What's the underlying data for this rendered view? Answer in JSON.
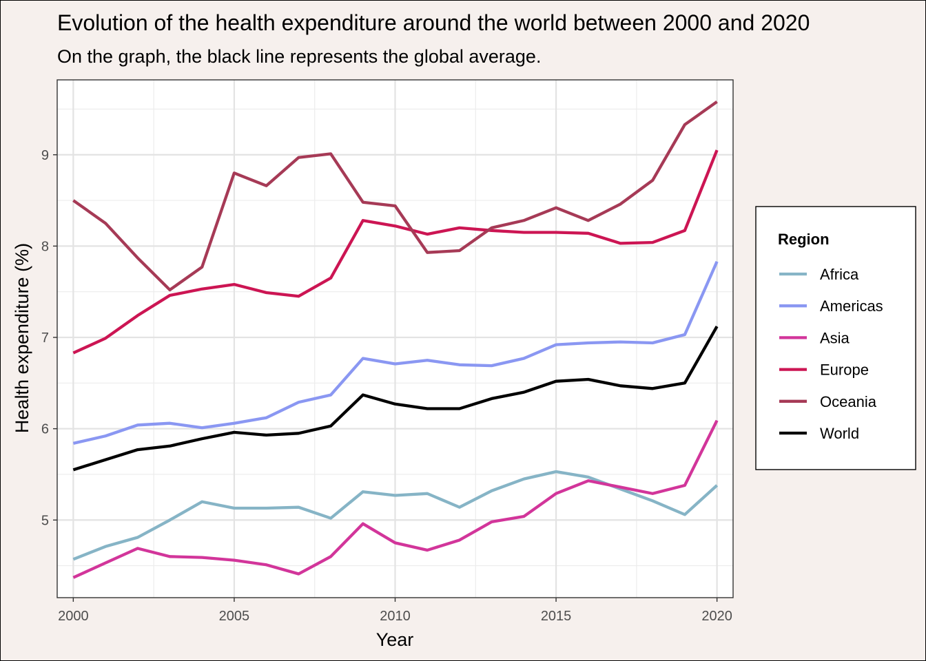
{
  "chart_data": {
    "type": "line",
    "title": "Evolution of the health expenditure around the world between 2000 and 2020",
    "subtitle": "On the graph, the black line represents the global average.",
    "xlabel": "Year",
    "ylabel": "Health expenditure (%)",
    "xlim": [
      1999.5,
      2020.5
    ],
    "ylim": [
      4.15,
      9.82
    ],
    "x_ticks": [
      2000,
      2005,
      2010,
      2015,
      2020
    ],
    "y_ticks": [
      5,
      6,
      7,
      8,
      9
    ],
    "grid": true,
    "legend_position": "right",
    "legend_title": "Region",
    "x": [
      2000,
      2001,
      2002,
      2003,
      2004,
      2005,
      2006,
      2007,
      2008,
      2009,
      2010,
      2011,
      2012,
      2013,
      2014,
      2015,
      2016,
      2017,
      2018,
      2019,
      2020
    ],
    "series": [
      {
        "name": "Africa",
        "color": "#86b4c6",
        "values": [
          4.57,
          4.71,
          4.81,
          5.0,
          5.2,
          5.13,
          5.13,
          5.14,
          5.02,
          5.31,
          5.27,
          5.29,
          5.14,
          5.32,
          5.45,
          5.53,
          5.47,
          5.34,
          5.21,
          5.06,
          5.38
        ]
      },
      {
        "name": "Americas",
        "color": "#8a97f2",
        "values": [
          5.84,
          5.92,
          6.04,
          6.06,
          6.01,
          6.06,
          6.12,
          6.29,
          6.37,
          6.77,
          6.71,
          6.75,
          6.7,
          6.69,
          6.77,
          6.92,
          6.94,
          6.95,
          6.94,
          7.03,
          7.83
        ]
      },
      {
        "name": "Asia",
        "color": "#d2359a",
        "values": [
          4.37,
          4.53,
          4.69,
          4.6,
          4.59,
          4.56,
          4.51,
          4.41,
          4.6,
          4.96,
          4.75,
          4.67,
          4.78,
          4.98,
          5.04,
          5.29,
          5.43,
          5.36,
          5.29,
          5.38,
          6.09
        ]
      },
      {
        "name": "Europe",
        "color": "#cc1553",
        "values": [
          6.83,
          6.99,
          7.24,
          7.46,
          7.53,
          7.58,
          7.49,
          7.45,
          7.65,
          8.28,
          8.22,
          8.13,
          8.2,
          8.17,
          8.15,
          8.15,
          8.14,
          8.03,
          8.04,
          8.17,
          9.05
        ]
      },
      {
        "name": "Oceania",
        "color": "#a63a56",
        "values": [
          8.5,
          8.25,
          7.87,
          7.52,
          7.77,
          8.8,
          8.66,
          8.97,
          9.01,
          8.48,
          8.44,
          7.93,
          7.95,
          8.2,
          8.28,
          8.42,
          8.28,
          8.46,
          8.72,
          9.33,
          9.58
        ]
      },
      {
        "name": "World",
        "color": "#000000",
        "values": [
          5.55,
          5.66,
          5.77,
          5.81,
          5.89,
          5.96,
          5.93,
          5.95,
          6.03,
          6.37,
          6.27,
          6.22,
          6.22,
          6.33,
          6.4,
          6.52,
          6.54,
          6.47,
          6.44,
          6.5,
          7.12
        ]
      }
    ]
  }
}
